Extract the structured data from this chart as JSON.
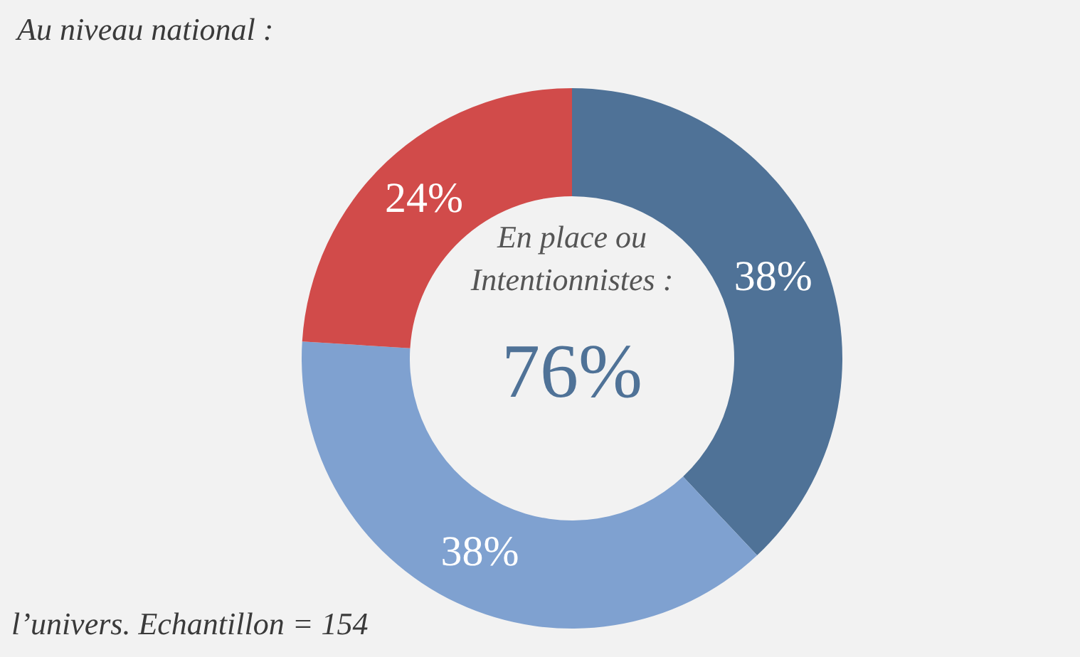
{
  "chart_data": {
    "type": "donut",
    "title": "Au niveau national :",
    "categories": [
      null,
      null,
      null
    ],
    "values": [
      38,
      38,
      24
    ],
    "colors": [
      "#4f7297",
      "#7fa1d0",
      "#d14b4a"
    ],
    "value_labels": [
      "38%",
      "38%",
      "24%"
    ],
    "annotations": [
      "En place ou Intentionnistes :",
      "76%",
      "l’univers.  Echantillon = 154"
    ],
    "legend": false
  }
}
